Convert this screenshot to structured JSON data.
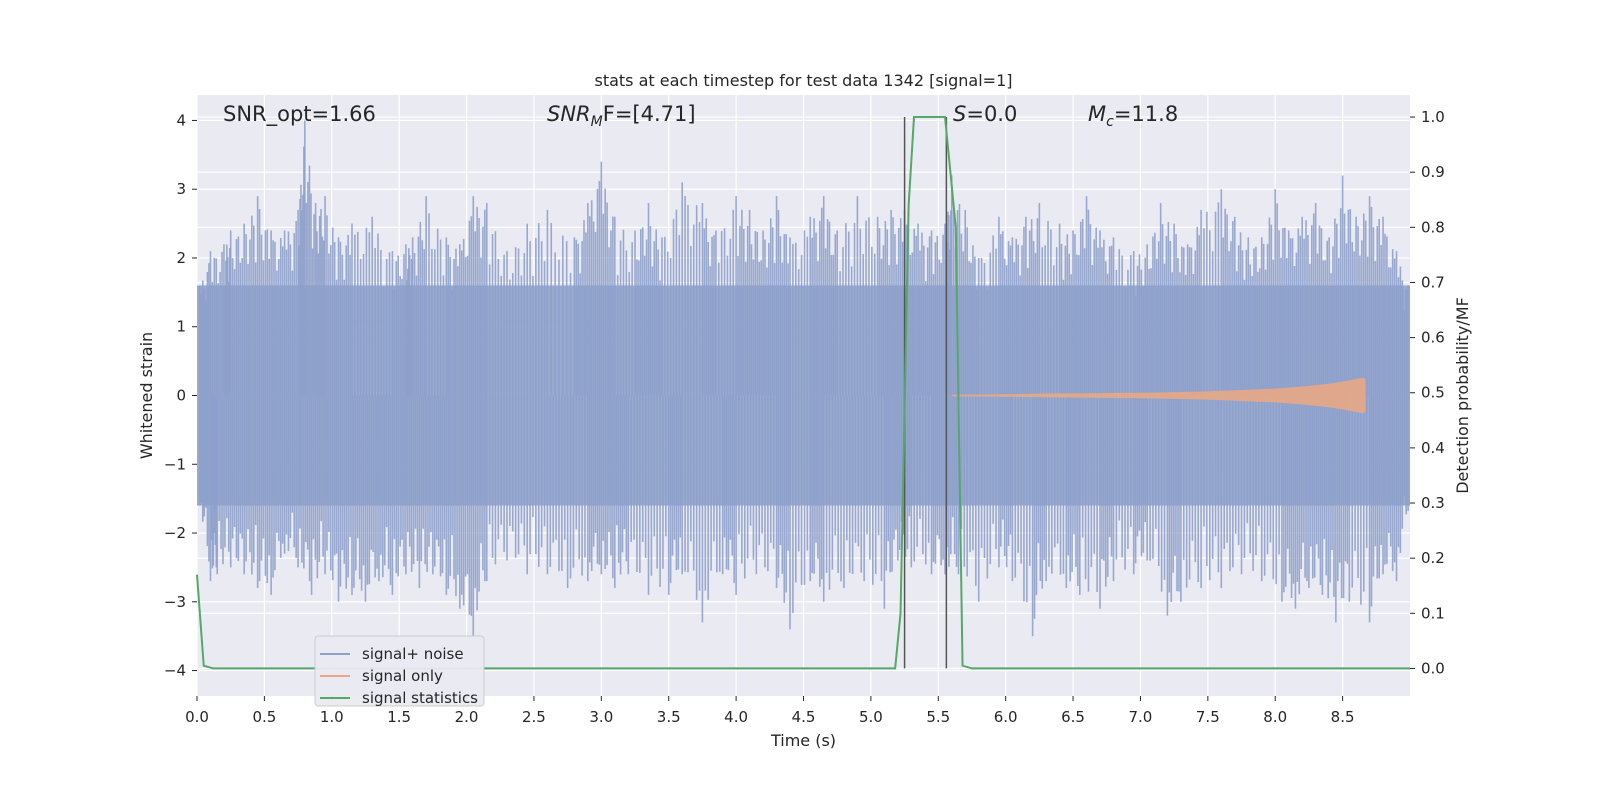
{
  "chart_data": {
    "type": "line",
    "title": "stats at each timestep for test data 1342 [signal=1]",
    "xlabel": "Time (s)",
    "ylabel_left": "Whitened strain",
    "ylabel_right": "Detection probability/MF",
    "xlim": [
      0,
      9.0
    ],
    "ylim_left": [
      -4.37,
      4.37
    ],
    "ylim_right": [
      -0.05,
      1.04
    ],
    "x_ticks": [
      "0.0",
      "0.5",
      "1.0",
      "1.5",
      "2.0",
      "2.5",
      "3.0",
      "3.5",
      "4.0",
      "4.5",
      "5.0",
      "5.5",
      "6.0",
      "6.5",
      "7.0",
      "7.5",
      "8.0",
      "8.5"
    ],
    "y_left_ticks": [
      "4",
      "3",
      "2",
      "1",
      "0",
      "−1",
      "−2",
      "−3",
      "−4"
    ],
    "y_right_ticks": [
      "1.0",
      "0.9",
      "0.8",
      "0.7",
      "0.6",
      "0.5",
      "0.4",
      "0.3",
      "0.2",
      "0.1",
      "0.0"
    ],
    "grid": true,
    "legend_position": "lower-left",
    "annotations": [
      {
        "prefix": "SNR_opt=1.66",
        "italic": "",
        "sub": "",
        "suffix": ""
      },
      {
        "prefix": "",
        "italic": "SNR",
        "sub": "M",
        "suffix": "F=[4.71]"
      },
      {
        "prefix": "",
        "italic": "S",
        "sub": "",
        "suffix": "=0.0"
      },
      {
        "prefix": "",
        "italic": "M",
        "sub": "c",
        "suffix": "=11.8"
      }
    ],
    "vertical_markers_x": [
      5.25,
      5.56
    ],
    "series": [
      {
        "name": "signal+ noise",
        "color": "#8da0cb",
        "axis": "left",
        "description_note_free": true,
        "envelope": {
          "x_range": [
            0,
            9.0
          ],
          "dense_band": [
            -1.6,
            1.6
          ]
        },
        "peaks_high": [
          [
            0.02,
            1.6
          ],
          [
            0.1,
            2.1
          ],
          [
            0.2,
            2.2
          ],
          [
            0.25,
            2.4
          ],
          [
            0.35,
            2.5
          ],
          [
            0.45,
            2.9
          ],
          [
            0.55,
            2.4
          ],
          [
            0.65,
            2.4
          ],
          [
            0.75,
            2.7
          ],
          [
            0.8,
            4.0
          ],
          [
            0.88,
            2.8
          ],
          [
            0.95,
            2.9
          ],
          [
            1.05,
            2.3
          ],
          [
            1.15,
            2.5
          ],
          [
            1.3,
            2.6
          ],
          [
            1.45,
            2.1
          ],
          [
            1.55,
            2.2
          ],
          [
            1.6,
            2.3
          ],
          [
            1.7,
            2.9
          ],
          [
            1.85,
            2.3
          ],
          [
            1.95,
            2.2
          ],
          [
            2.05,
            2.9
          ],
          [
            2.15,
            2.8
          ],
          [
            2.3,
            2.1
          ],
          [
            2.45,
            2.5
          ],
          [
            2.6,
            2.7
          ],
          [
            2.8,
            2.3
          ],
          [
            2.9,
            2.8
          ],
          [
            3.0,
            3.4
          ],
          [
            3.1,
            2.6
          ],
          [
            3.25,
            2.4
          ],
          [
            3.35,
            2.8
          ],
          [
            3.45,
            2.3
          ],
          [
            3.6,
            3.1
          ],
          [
            3.75,
            2.8
          ],
          [
            3.85,
            2.4
          ],
          [
            4.0,
            2.9
          ],
          [
            4.1,
            2.7
          ],
          [
            4.2,
            2.4
          ],
          [
            4.3,
            2.9
          ],
          [
            4.4,
            2.3
          ],
          [
            4.55,
            2.6
          ],
          [
            4.65,
            2.9
          ],
          [
            4.75,
            2.4
          ],
          [
            4.9,
            2.9
          ],
          [
            5.05,
            2.6
          ],
          [
            5.15,
            2.7
          ],
          [
            5.25,
            2.7
          ],
          [
            5.35,
            2.5
          ],
          [
            5.45,
            2.4
          ],
          [
            5.55,
            2.5
          ],
          [
            5.6,
            3.2
          ],
          [
            5.7,
            2.7
          ],
          [
            5.8,
            2.0
          ],
          [
            5.95,
            2.6
          ],
          [
            6.05,
            2.3
          ],
          [
            6.15,
            2.6
          ],
          [
            6.25,
            2.8
          ],
          [
            6.4,
            2.5
          ],
          [
            6.5,
            2.4
          ],
          [
            6.6,
            2.9
          ],
          [
            6.7,
            2.4
          ],
          [
            6.8,
            2.3
          ],
          [
            6.95,
            2.1
          ],
          [
            7.05,
            2.2
          ],
          [
            7.15,
            2.8
          ],
          [
            7.25,
            2.5
          ],
          [
            7.35,
            2.2
          ],
          [
            7.45,
            2.7
          ],
          [
            7.6,
            3.0
          ],
          [
            7.7,
            2.6
          ],
          [
            7.8,
            2.3
          ],
          [
            7.9,
            2.3
          ],
          [
            8.0,
            3.0
          ],
          [
            8.1,
            2.4
          ],
          [
            8.2,
            2.6
          ],
          [
            8.3,
            2.8
          ],
          [
            8.4,
            2.3
          ],
          [
            8.5,
            3.2
          ],
          [
            8.6,
            2.6
          ],
          [
            8.7,
            2.9
          ],
          [
            8.8,
            2.6
          ],
          [
            8.9,
            2.1
          ],
          [
            9.0,
            1.6
          ]
        ],
        "peaks_low": [
          [
            0.02,
            -1.6
          ],
          [
            0.1,
            -2.7
          ],
          [
            0.15,
            -2.6
          ],
          [
            0.25,
            -2.5
          ],
          [
            0.35,
            -2.6
          ],
          [
            0.45,
            -2.8
          ],
          [
            0.55,
            -2.9
          ],
          [
            0.65,
            -2.3
          ],
          [
            0.75,
            -2.5
          ],
          [
            0.85,
            -2.9
          ],
          [
            0.95,
            -2.6
          ],
          [
            1.05,
            -3.0
          ],
          [
            1.15,
            -2.9
          ],
          [
            1.25,
            -3.0
          ],
          [
            1.35,
            -2.7
          ],
          [
            1.45,
            -2.9
          ],
          [
            1.55,
            -2.6
          ],
          [
            1.65,
            -2.8
          ],
          [
            1.75,
            -2.6
          ],
          [
            1.85,
            -2.9
          ],
          [
            1.95,
            -3.1
          ],
          [
            2.05,
            -3.5
          ],
          [
            2.15,
            -2.7
          ],
          [
            2.3,
            -2.4
          ],
          [
            2.45,
            -2.6
          ],
          [
            2.6,
            -2.6
          ],
          [
            2.75,
            -2.8
          ],
          [
            2.9,
            -2.7
          ],
          [
            3.0,
            -2.6
          ],
          [
            3.1,
            -2.8
          ],
          [
            3.2,
            -2.6
          ],
          [
            3.35,
            -2.9
          ],
          [
            3.5,
            -2.9
          ],
          [
            3.6,
            -2.6
          ],
          [
            3.75,
            -3.3
          ],
          [
            3.9,
            -2.6
          ],
          [
            4.0,
            -2.9
          ],
          [
            4.15,
            -2.6
          ],
          [
            4.3,
            -2.8
          ],
          [
            4.4,
            -3.4
          ],
          [
            4.55,
            -2.7
          ],
          [
            4.65,
            -3.0
          ],
          [
            4.8,
            -2.8
          ],
          [
            4.95,
            -2.7
          ],
          [
            5.1,
            -3.1
          ],
          [
            5.2,
            -2.4
          ],
          [
            5.3,
            -2.5
          ],
          [
            5.45,
            -2.6
          ],
          [
            5.55,
            -2.6
          ],
          [
            5.65,
            -2.6
          ],
          [
            5.8,
            -3.0
          ],
          [
            5.95,
            -2.5
          ],
          [
            6.05,
            -2.7
          ],
          [
            6.2,
            -3.5
          ],
          [
            6.3,
            -2.7
          ],
          [
            6.45,
            -2.8
          ],
          [
            6.55,
            -2.9
          ],
          [
            6.7,
            -3.1
          ],
          [
            6.8,
            -2.7
          ],
          [
            6.95,
            -2.6
          ],
          [
            7.05,
            -2.4
          ],
          [
            7.2,
            -3.2
          ],
          [
            7.3,
            -3.0
          ],
          [
            7.45,
            -2.8
          ],
          [
            7.6,
            -2.8
          ],
          [
            7.75,
            -2.6
          ],
          [
            7.9,
            -2.7
          ],
          [
            8.05,
            -3.0
          ],
          [
            8.15,
            -3.1
          ],
          [
            8.25,
            -2.8
          ],
          [
            8.35,
            -2.9
          ],
          [
            8.45,
            -3.3
          ],
          [
            8.55,
            -3.0
          ],
          [
            8.7,
            -3.3
          ],
          [
            8.8,
            -2.6
          ],
          [
            8.9,
            -2.7
          ],
          [
            9.0,
            -1.6
          ]
        ]
      },
      {
        "name": "signal only",
        "color": "#e8a785",
        "axis": "left",
        "points": [
          [
            5.6,
            0.01
          ],
          [
            6.0,
            0.02
          ],
          [
            6.5,
            0.03
          ],
          [
            7.0,
            0.04
          ],
          [
            7.5,
            0.06
          ],
          [
            8.0,
            0.1
          ],
          [
            8.2,
            0.13
          ],
          [
            8.4,
            0.17
          ],
          [
            8.55,
            0.22
          ],
          [
            8.65,
            0.26
          ],
          [
            8.67,
            0.24
          ]
        ]
      },
      {
        "name": "signal statistics",
        "color": "#55a868",
        "axis": "right",
        "points": [
          [
            0.0,
            0.17
          ],
          [
            0.05,
            0.005
          ],
          [
            0.12,
            0.0
          ],
          [
            5.18,
            0.0
          ],
          [
            5.22,
            0.1
          ],
          [
            5.28,
            0.84
          ],
          [
            5.32,
            1.0
          ],
          [
            5.55,
            1.0
          ],
          [
            5.63,
            0.8
          ],
          [
            5.68,
            0.005
          ],
          [
            5.75,
            0.0
          ],
          [
            9.0,
            0.0
          ]
        ]
      }
    ]
  }
}
